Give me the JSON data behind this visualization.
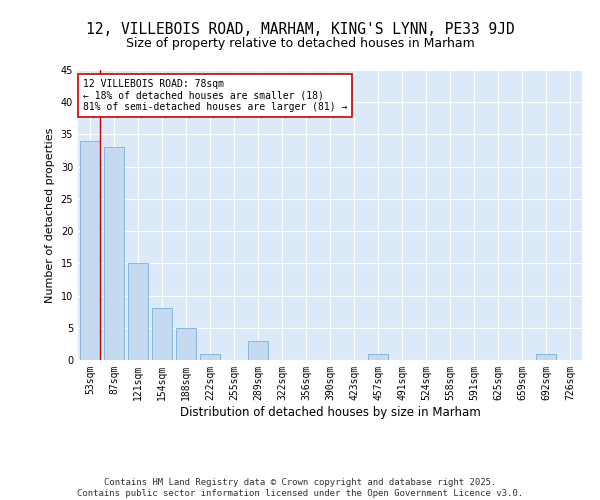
{
  "title1": "12, VILLEBOIS ROAD, MARHAM, KING'S LYNN, PE33 9JD",
  "title2": "Size of property relative to detached houses in Marham",
  "xlabel": "Distribution of detached houses by size in Marham",
  "ylabel": "Number of detached properties",
  "categories": [
    "53sqm",
    "87sqm",
    "121sqm",
    "154sqm",
    "188sqm",
    "222sqm",
    "255sqm",
    "289sqm",
    "322sqm",
    "356sqm",
    "390sqm",
    "423sqm",
    "457sqm",
    "491sqm",
    "524sqm",
    "558sqm",
    "591sqm",
    "625sqm",
    "659sqm",
    "692sqm",
    "726sqm"
  ],
  "values": [
    34,
    33,
    15,
    8,
    5,
    1,
    0,
    3,
    0,
    0,
    0,
    0,
    1,
    0,
    0,
    0,
    0,
    0,
    0,
    1,
    0
  ],
  "bar_color": "#c5d9f0",
  "bar_edge_color": "#7bafd4",
  "marker_color": "#cc0000",
  "annotation_line1": "12 VILLEBOIS ROAD: 78sqm",
  "annotation_line2": "← 18% of detached houses are smaller (18)",
  "annotation_line3": "81% of semi-detached houses are larger (81) →",
  "ylim": [
    0,
    45
  ],
  "yticks": [
    0,
    5,
    10,
    15,
    20,
    25,
    30,
    35,
    40,
    45
  ],
  "background_color": "#dce9f8",
  "grid_color": "#ffffff",
  "footer_line1": "Contains HM Land Registry data © Crown copyright and database right 2025.",
  "footer_line2": "Contains public sector information licensed under the Open Government Licence v3.0.",
  "title1_fontsize": 10.5,
  "title2_fontsize": 9,
  "xlabel_fontsize": 8.5,
  "ylabel_fontsize": 8,
  "tick_fontsize": 7,
  "annotation_fontsize": 7,
  "footer_fontsize": 6.5
}
